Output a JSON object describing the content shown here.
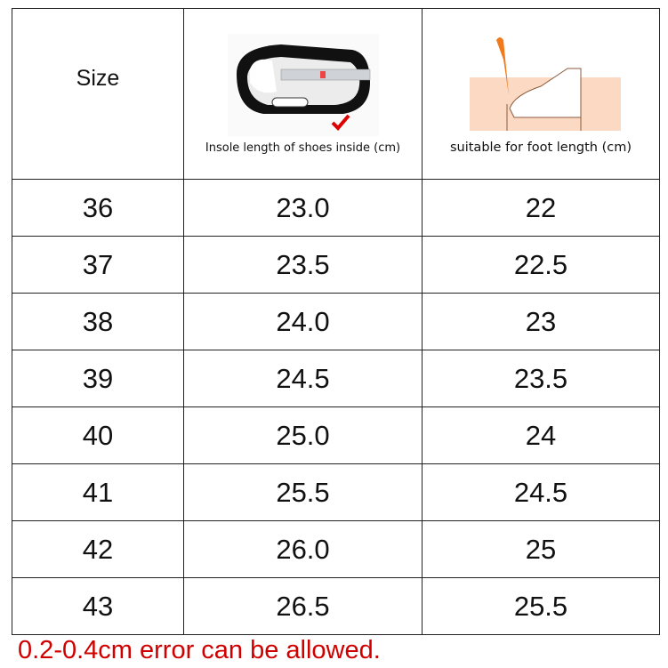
{
  "table": {
    "headers": {
      "size": "Size",
      "insole": "Insole length of shoes inside (cm)",
      "foot": "suitable for foot length (cm)"
    },
    "header_icons": [
      "shoe-insole-measure-image",
      "foot-measure-image"
    ],
    "rows": [
      {
        "size": "36",
        "insole": "23.0",
        "foot": "22"
      },
      {
        "size": "37",
        "insole": "23.5",
        "foot": "22.5"
      },
      {
        "size": "38",
        "insole": "24.0",
        "foot": "23"
      },
      {
        "size": "39",
        "insole": "24.5",
        "foot": "23.5"
      },
      {
        "size": "40",
        "insole": "25.0",
        "foot": "24"
      },
      {
        "size": "41",
        "insole": "25.5",
        "foot": "24.5"
      },
      {
        "size": "42",
        "insole": "26.0",
        "foot": "25"
      },
      {
        "size": "43",
        "insole": "26.5",
        "foot": "25.5"
      }
    ]
  },
  "note": "0.2-0.4cm error can be allowed.",
  "colors": {
    "note": "#d00000",
    "border": "#222222"
  }
}
